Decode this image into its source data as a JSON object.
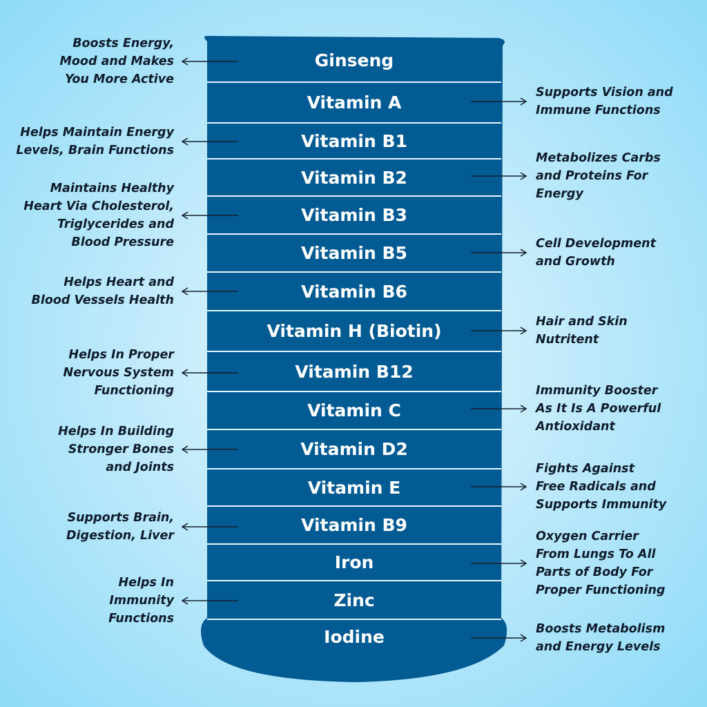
{
  "colors": {
    "column": "#035b94",
    "separator": "#e8f6fd",
    "text": "#0f1c2b"
  },
  "items": [
    {
      "name": "Ginseng",
      "side": "left",
      "lines": [
        "Boosts Energy,",
        "Mood and Makes",
        "You More Active"
      ]
    },
    {
      "name": "Vitamin A",
      "side": "right",
      "lines": [
        "Supports Vision and",
        "Immune Functions"
      ]
    },
    {
      "name": "Vitamin B1",
      "side": "left",
      "lines": [
        "Helps Maintain Energy",
        "Levels, Brain Functions"
      ]
    },
    {
      "name": "Vitamin B2",
      "side": "right",
      "lines": [
        "Metabolizes Carbs",
        "and Proteins For",
        "Energy"
      ]
    },
    {
      "name": "Vitamin B3",
      "side": "left",
      "lines": [
        "Maintains Healthy",
        "Heart Via Cholesterol,",
        "Triglycerides and",
        "Blood Pressure"
      ]
    },
    {
      "name": "Vitamin B5",
      "side": "right",
      "lines": [
        "Cell Development",
        "and Growth"
      ]
    },
    {
      "name": "Vitamin B6",
      "side": "left",
      "lines": [
        "Helps Heart and",
        "Blood Vessels Health"
      ]
    },
    {
      "name": "Vitamin H (Biotin)",
      "side": "right",
      "lines": [
        "Hair and Skin",
        "Nutritent"
      ]
    },
    {
      "name": "Vitamin B12",
      "side": "left",
      "lines": [
        "Helps In Proper",
        "Nervous System",
        "Functioning"
      ]
    },
    {
      "name": "Vitamin C",
      "side": "right",
      "lines": [
        "Immunity Booster",
        "As It Is A Powerful",
        "Antioxidant"
      ]
    },
    {
      "name": "Vitamin D2",
      "side": "left",
      "lines": [
        "Helps In Building",
        "Stronger Bones",
        "and Joints"
      ]
    },
    {
      "name": "Vitamin E",
      "side": "right",
      "lines": [
        "Fights Against",
        "Free Radicals and",
        "Supports Immunity"
      ]
    },
    {
      "name": "Vitamin B9",
      "side": "left",
      "lines": [
        "Supports Brain,",
        "Digestion, Liver"
      ]
    },
    {
      "name": "Iron",
      "side": "right",
      "lines": [
        "Oxygen Carrier",
        "From Lungs To All",
        "Parts of Body For",
        "Proper Functioning"
      ]
    },
    {
      "name": "Zinc",
      "side": "left",
      "lines": [
        "Helps In",
        "Immunity",
        "Functions"
      ]
    },
    {
      "name": "Iodine",
      "side": "right",
      "lines": [
        "Boosts Metabolism",
        "and Energy Levels"
      ]
    }
  ]
}
